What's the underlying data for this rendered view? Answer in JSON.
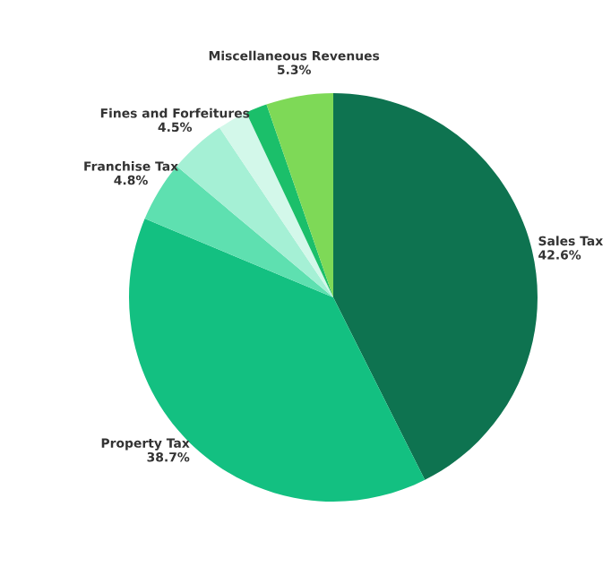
{
  "chart_data": {
    "type": "pie",
    "categories": [
      "Sales Tax",
      "Property Tax",
      "Franchise Tax",
      "Fines and Forfeitures",
      null,
      null,
      "Miscellaneous Revenues"
    ],
    "values": [
      42.6,
      38.7,
      4.8,
      4.5,
      2.4,
      1.7,
      5.3
    ],
    "value_labels": [
      "42.6%",
      "38.7%",
      "4.8%",
      "4.5%",
      null,
      null,
      "5.3%"
    ],
    "colors": [
      "#0e7350",
      "#13c081",
      "#5ee0b0",
      "#a5f0d5",
      "#d3f8ea",
      "#1bbf6a",
      "#7ed957"
    ]
  }
}
